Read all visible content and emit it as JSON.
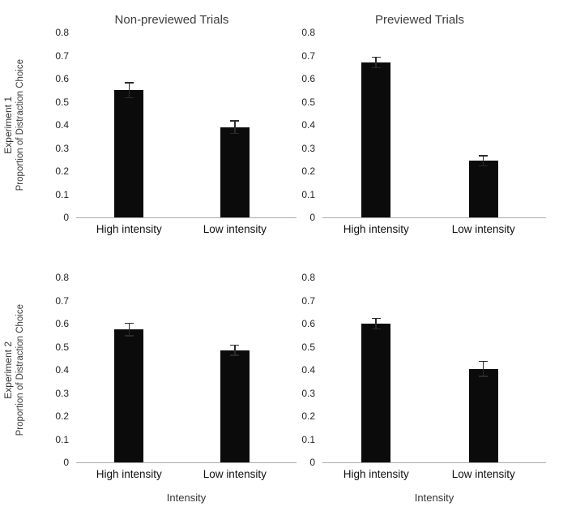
{
  "figure": {
    "col_titles": [
      "Non-previewed Trials",
      "Previewed Trials"
    ],
    "row_labels": [
      "Experiment 1",
      "Experiment 2"
    ],
    "ylabel": "Proportion of Distraction Choice",
    "xlabel": "Intensity"
  },
  "chart_data": [
    {
      "type": "bar",
      "row": "Experiment 1",
      "col": "Non-previewed Trials",
      "categories": [
        "High intensity",
        "Low intensity"
      ],
      "values": [
        0.55,
        0.39
      ],
      "errors": [
        0.035,
        0.03
      ],
      "ylim": [
        0,
        0.8
      ],
      "yticks": [
        0.8,
        0.7,
        0.6,
        0.5,
        0.4,
        0.3,
        0.2,
        0.1,
        0
      ],
      "ylabel": "Proportion of Distraction Choice",
      "bar_color": "#0b0b0b",
      "grid": false,
      "legend": "none"
    },
    {
      "type": "bar",
      "row": "Experiment 1",
      "col": "Previewed Trials",
      "categories": [
        "High intensity",
        "Low intensity"
      ],
      "values": [
        0.67,
        0.245
      ],
      "errors": [
        0.025,
        0.025
      ],
      "ylim": [
        0,
        0.8
      ],
      "yticks": [
        0.8,
        0.7,
        0.6,
        0.5,
        0.4,
        0.3,
        0.2,
        0.1,
        0
      ],
      "bar_color": "#0b0b0b",
      "grid": false,
      "legend": "none"
    },
    {
      "type": "bar",
      "row": "Experiment 2",
      "col": "Non-previewed Trials",
      "categories": [
        "High intensity",
        "Low intensity"
      ],
      "values": [
        0.575,
        0.485
      ],
      "errors": [
        0.03,
        0.025
      ],
      "ylim": [
        0,
        0.8
      ],
      "yticks": [
        0.8,
        0.7,
        0.6,
        0.5,
        0.4,
        0.3,
        0.2,
        0.1,
        0
      ],
      "ylabel": "Proportion of Distraction Choice",
      "xlabel": "Intensity",
      "bar_color": "#0b0b0b",
      "grid": false,
      "legend": "none"
    },
    {
      "type": "bar",
      "row": "Experiment 2",
      "col": "Previewed Trials",
      "categories": [
        "High intensity",
        "Low intensity"
      ],
      "values": [
        0.6,
        0.405
      ],
      "errors": [
        0.025,
        0.035
      ],
      "ylim": [
        0,
        0.8
      ],
      "yticks": [
        0.8,
        0.7,
        0.6,
        0.5,
        0.4,
        0.3,
        0.2,
        0.1,
        0
      ],
      "xlabel": "Intensity",
      "bar_color": "#0b0b0b",
      "grid": false,
      "legend": "none"
    }
  ]
}
